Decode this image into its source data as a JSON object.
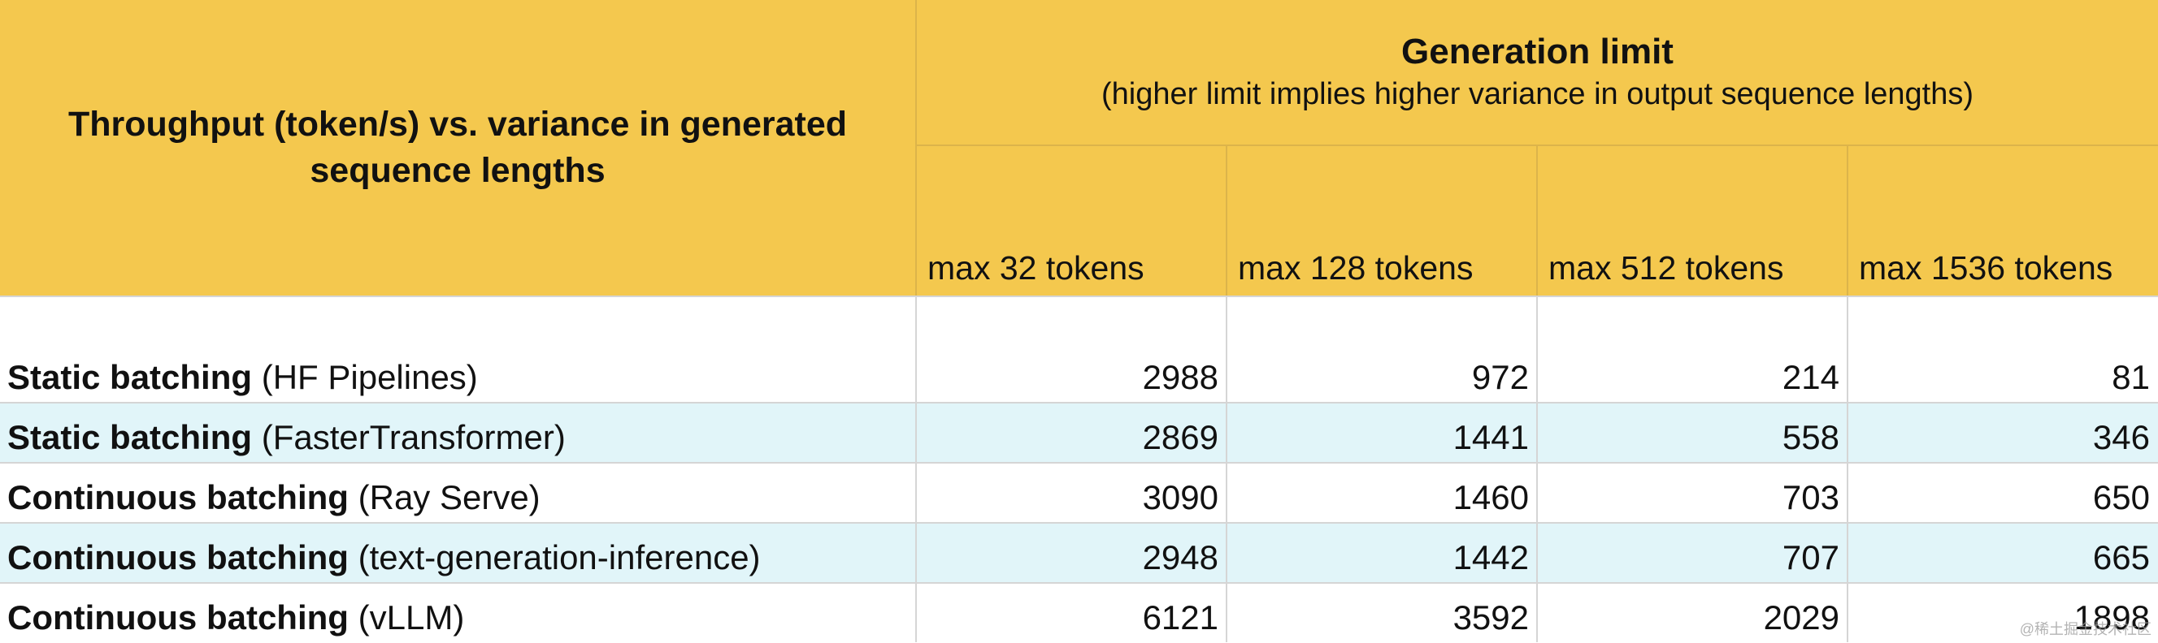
{
  "chart_data": {
    "type": "table",
    "title": "Throughput (token/s) vs. variance in generated sequence lengths",
    "column_group": {
      "title": "Generation limit",
      "subtitle": "(higher limit implies higher variance in output sequence lengths)"
    },
    "columns": [
      "max 32 tokens",
      "max 128 tokens",
      "max 512 tokens",
      "max 1536 tokens"
    ],
    "rows": [
      {
        "method": "Static batching",
        "framework": "(HF Pipelines)",
        "values": [
          2988,
          972,
          214,
          81
        ]
      },
      {
        "method": "Static batching",
        "framework": "(FasterTransformer)",
        "values": [
          2869,
          1441,
          558,
          346
        ]
      },
      {
        "method": "Continuous batching",
        "framework": "(Ray Serve)",
        "values": [
          3090,
          1460,
          703,
          650
        ]
      },
      {
        "method": "Continuous batching",
        "framework": "(text-generation-inference)",
        "values": [
          2948,
          1442,
          707,
          665
        ]
      },
      {
        "method": "Continuous batching",
        "framework": "(vLLM)",
        "values": [
          6121,
          3592,
          2029,
          1898
        ]
      }
    ],
    "colors": {
      "header_background": "#f4c84e",
      "alternate_row_background": "#e1f5f9",
      "row_background": "#ffffff"
    }
  },
  "watermark": "@稀土掘金技术社区"
}
